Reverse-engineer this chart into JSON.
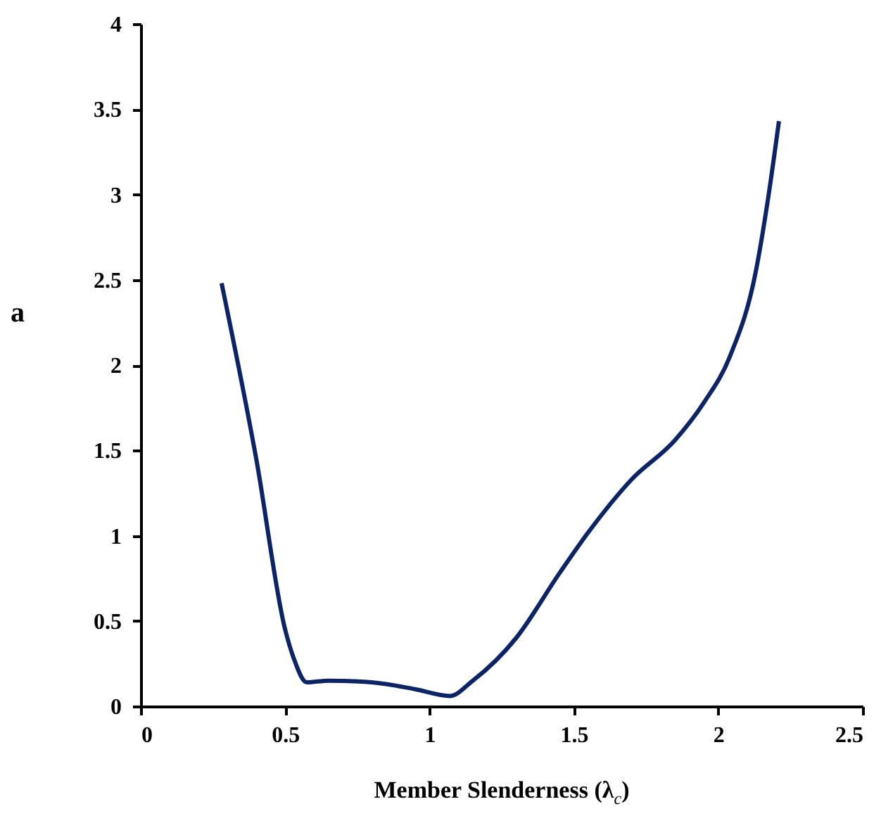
{
  "chart_data": {
    "type": "line",
    "xlabel": "Member Slenderness  (λ$_{c}$)",
    "ylabel": "a",
    "x": [
      0.28,
      0.4,
      0.5,
      0.53,
      0.575,
      0.65,
      0.8,
      0.95,
      1.07,
      1.15,
      1.3,
      1.45,
      1.55,
      1.7,
      1.85,
      1.95,
      2.04,
      2.13,
      2.17,
      2.21
    ],
    "series": [
      {
        "color": "#0c2466",
        "values": [
          2.48,
          1.45,
          0.45,
          0.28,
          0.14,
          0.15,
          0.14,
          0.1,
          0.06,
          0.15,
          0.4,
          0.78,
          1.02,
          1.33,
          1.56,
          1.78,
          2.05,
          2.55,
          2.95,
          3.43
        ]
      }
    ],
    "xlim": [
      0,
      2.5
    ],
    "xticks": [
      0,
      0.5,
      1,
      1.5,
      2,
      2.5
    ],
    "ylim": [
      0,
      4
    ],
    "yticks": [
      0,
      0.5,
      1,
      1.5,
      2,
      2.5,
      3,
      3.5,
      4
    ],
    "grid": false,
    "marker": "none",
    "line_style": "solid"
  }
}
